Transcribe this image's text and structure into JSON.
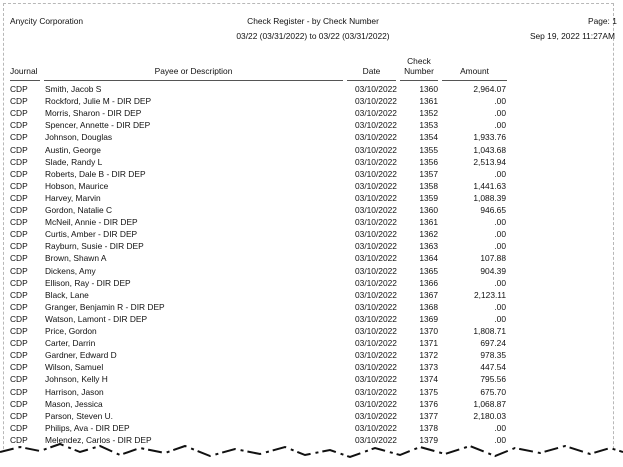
{
  "header": {
    "company": "Anycity Corporation",
    "title": "Check Register - by Check Number",
    "date_range": "03/22 (03/31/2022) to 03/22 (03/31/2022)",
    "page": "Page: 1",
    "timestamp": "Sep 19, 2022 11:27AM"
  },
  "table": {
    "columns": [
      "Journal",
      "Payee or Description",
      "Date",
      "Check Number",
      "Amount"
    ],
    "rows": [
      [
        "CDP",
        "Smith, Jacob S",
        "03/10/2022",
        "1360",
        "2,964.07"
      ],
      [
        "CDP",
        "Rockford, Julie M - DIR DEP",
        "03/10/2022",
        "1361",
        ".00"
      ],
      [
        "CDP",
        "Morris, Sharon - DIR DEP",
        "03/10/2022",
        "1352",
        ".00"
      ],
      [
        "CDP",
        "Spencer, Annette - DIR DEP",
        "03/10/2022",
        "1353",
        ".00"
      ],
      [
        "CDP",
        "Johnson, Douglas",
        "03/10/2022",
        "1354",
        "1,933.76"
      ],
      [
        "CDP",
        "Austin, George",
        "03/10/2022",
        "1355",
        "1,043.68"
      ],
      [
        "CDP",
        "Slade, Randy L",
        "03/10/2022",
        "1356",
        "2,513.94"
      ],
      [
        "CDP",
        "Roberts, Dale B - DIR DEP",
        "03/10/2022",
        "1357",
        ".00"
      ],
      [
        "CDP",
        "Hobson, Maurice",
        "03/10/2022",
        "1358",
        "1,441.63"
      ],
      [
        "CDP",
        "Harvey, Marvin",
        "03/10/2022",
        "1359",
        "1,088.39"
      ],
      [
        "CDP",
        "Gordon, Natalie C",
        "03/10/2022",
        "1360",
        "946.65"
      ],
      [
        "CDP",
        "McNeil, Annie - DIR DEP",
        "03/10/2022",
        "1361",
        ".00"
      ],
      [
        "CDP",
        "Curtis, Amber - DIR DEP",
        "03/10/2022",
        "1362",
        ".00"
      ],
      [
        "CDP",
        "Rayburn, Susie - DIR DEP",
        "03/10/2022",
        "1363",
        ".00"
      ],
      [
        "CDP",
        "Brown, Shawn A",
        "03/10/2022",
        "1364",
        "107.88"
      ],
      [
        "CDP",
        "Dickens, Amy",
        "03/10/2022",
        "1365",
        "904.39"
      ],
      [
        "CDP",
        "Ellison, Ray - DIR DEP",
        "03/10/2022",
        "1366",
        ".00"
      ],
      [
        "CDP",
        "Black, Lane",
        "03/10/2022",
        "1367",
        "2,123.11"
      ],
      [
        "CDP",
        "Granger, Benjamin R - DIR DEP",
        "03/10/2022",
        "1368",
        ".00"
      ],
      [
        "CDP",
        "Watson, Lamont - DIR DEP",
        "03/10/2022",
        "1369",
        ".00"
      ],
      [
        "CDP",
        "Price, Gordon",
        "03/10/2022",
        "1370",
        "1,808.71"
      ],
      [
        "CDP",
        "Carter, Darrin",
        "03/10/2022",
        "1371",
        "697.24"
      ],
      [
        "CDP",
        "Gardner, Edward D",
        "03/10/2022",
        "1372",
        "978.35"
      ],
      [
        "CDP",
        "Wilson, Samuel",
        "03/10/2022",
        "1373",
        "447.54"
      ],
      [
        "CDP",
        "Johnson, Kelly H",
        "03/10/2022",
        "1374",
        "795.56"
      ],
      [
        "CDP",
        "Harrison, Jason",
        "03/10/2022",
        "1375",
        "675.70"
      ],
      [
        "CDP",
        "Mason, Jessica",
        "03/10/2022",
        "1376",
        "1,068.87"
      ],
      [
        "CDP",
        "Parson, Steven U.",
        "03/10/2022",
        "1377",
        "2,180.03"
      ],
      [
        "CDP",
        "Philips, Ava - DIR DEP",
        "03/10/2022",
        "1378",
        ".00"
      ],
      [
        "CDP",
        "Melendez, Carlos - DIR DEP",
        "03/10/2022",
        "1379",
        ".00"
      ]
    ]
  }
}
